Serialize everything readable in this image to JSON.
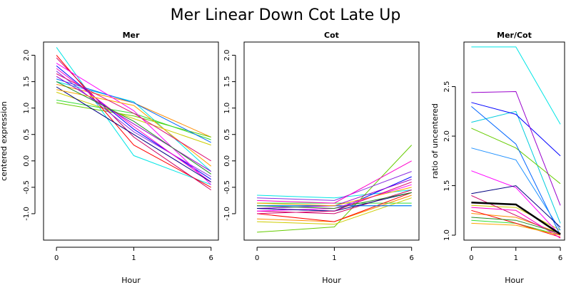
{
  "figure_title": "Mer Linear Down Cot Late Up",
  "chart_data": [
    {
      "type": "line",
      "title": "Mer",
      "xlabel": "Hour",
      "ylabel": "centered expression",
      "x": [
        0,
        1,
        6
      ],
      "ylim": [
        -1.5,
        2.25
      ],
      "yticks": [
        -1.0,
        -0.5,
        0.0,
        0.5,
        1.0,
        1.5,
        2.0
      ],
      "ytick_labels": [
        "-1.0",
        "-0.5",
        "0.0",
        "0.5",
        "1.0",
        "1.5",
        "2.0"
      ],
      "xtick_labels": [
        "0",
        "1",
        "6"
      ],
      "grid": false,
      "series": [
        {
          "color": "#00e5e5",
          "values": [
            2.15,
            0.1,
            -0.45
          ]
        },
        {
          "color": "#00e5e5",
          "values": [
            1.5,
            1.12,
            -0.2
          ]
        },
        {
          "color": "#ff8c00",
          "values": [
            1.45,
            1.1,
            0.45
          ]
        },
        {
          "color": "#66cc00",
          "values": [
            1.1,
            0.85,
            0.45
          ]
        },
        {
          "color": "#33dd33",
          "values": [
            1.15,
            0.9,
            0.4
          ]
        },
        {
          "color": "#cccc00",
          "values": [
            1.3,
            0.8,
            0.3
          ]
        },
        {
          "color": "#ff0000",
          "values": [
            2.0,
            0.3,
            -0.5
          ]
        },
        {
          "color": "#cc0066",
          "values": [
            1.95,
            0.45,
            -0.55
          ]
        },
        {
          "color": "#0000ff",
          "values": [
            1.8,
            0.6,
            -0.35
          ]
        },
        {
          "color": "#0066ff",
          "values": [
            1.55,
            1.1,
            0.35
          ]
        },
        {
          "color": "#8a2be2",
          "values": [
            1.7,
            0.55,
            -0.3
          ]
        },
        {
          "color": "#9900cc",
          "values": [
            1.6,
            0.7,
            -0.2
          ]
        },
        {
          "color": "#ff00ff",
          "values": [
            1.85,
            0.95,
            -0.45
          ]
        },
        {
          "color": "#ff00cc",
          "values": [
            1.75,
            0.65,
            -0.4
          ]
        },
        {
          "color": "#000080",
          "values": [
            1.4,
            0.5,
            -0.4
          ]
        },
        {
          "color": "#ffa500",
          "values": [
            1.35,
            1.05,
            -0.1
          ]
        },
        {
          "color": "#228b22",
          "values": [
            1.5,
            0.75,
            -0.25
          ]
        },
        {
          "color": "#dd1177",
          "values": [
            1.65,
            0.9,
            0.0
          ]
        }
      ]
    },
    {
      "type": "line",
      "title": "Cot",
      "xlabel": "Hour",
      "ylabel": "",
      "x": [
        0,
        1,
        6
      ],
      "ylim": [
        -1.5,
        2.25
      ],
      "yticks": [
        -1.0,
        -0.5,
        0.0,
        0.5,
        1.0,
        1.5,
        2.0
      ],
      "ytick_labels": [
        "-1.0",
        "-0.5",
        "0.0",
        "0.5",
        "1.0",
        "1.5",
        "2.0"
      ],
      "xtick_labels": [
        "0",
        "1",
        "6"
      ],
      "grid": false,
      "series": [
        {
          "color": "#00e5e5",
          "values": [
            -0.65,
            -0.7,
            -0.55
          ]
        },
        {
          "color": "#00cccc",
          "values": [
            -0.85,
            -0.85,
            -0.85
          ]
        },
        {
          "color": "#ff8c00",
          "values": [
            -1.1,
            -1.15,
            -0.65
          ]
        },
        {
          "color": "#66cc00",
          "values": [
            -1.35,
            -1.25,
            0.3
          ]
        },
        {
          "color": "#33dd33",
          "values": [
            -0.8,
            -0.8,
            -0.8
          ]
        },
        {
          "color": "#cccc00",
          "values": [
            -1.15,
            -1.2,
            -0.7
          ]
        },
        {
          "color": "#ff0000",
          "values": [
            -1.0,
            -1.15,
            -0.6
          ]
        },
        {
          "color": "#cc0066",
          "values": [
            -0.95,
            -1.0,
            -0.55
          ]
        },
        {
          "color": "#0000ff",
          "values": [
            -0.9,
            -0.95,
            -0.3
          ]
        },
        {
          "color": "#0066ff",
          "values": [
            -0.85,
            -0.85,
            -0.85
          ]
        },
        {
          "color": "#8a2be2",
          "values": [
            -0.7,
            -0.75,
            -0.2
          ]
        },
        {
          "color": "#9900cc",
          "values": [
            -0.9,
            -0.85,
            -0.35
          ]
        },
        {
          "color": "#ff00ff",
          "values": [
            -0.95,
            -0.9,
            -0.45
          ]
        },
        {
          "color": "#ff00cc",
          "values": [
            -0.75,
            -0.8,
            0.0
          ]
        },
        {
          "color": "#000080",
          "values": [
            -0.9,
            -0.95,
            -0.6
          ]
        },
        {
          "color": "#ffa500",
          "values": [
            -0.8,
            -0.85,
            -0.5
          ]
        },
        {
          "color": "#228b22",
          "values": [
            -0.85,
            -0.9,
            -0.6
          ]
        },
        {
          "color": "#dd1177",
          "values": [
            -1.0,
            -0.95,
            -0.4
          ]
        }
      ]
    },
    {
      "type": "line",
      "title": "Mer/Cot",
      "xlabel": "Hour",
      "ylabel": "ratio of uncentered",
      "x": [
        0,
        1,
        6
      ],
      "ylim": [
        0.95,
        2.95
      ],
      "yticks": [
        1.0,
        1.5,
        2.0,
        2.5
      ],
      "ytick_labels": [
        "1.0",
        "1.5",
        "2.0",
        "2.5"
      ],
      "xtick_labels": [
        "0",
        "1",
        "6"
      ],
      "grid": false,
      "series": [
        {
          "color": "#00e5e5",
          "values": [
            2.9,
            2.9,
            2.12
          ]
        },
        {
          "color": "#00ccdd",
          "values": [
            2.14,
            2.25,
            1.12
          ]
        },
        {
          "color": "#ff8c00",
          "values": [
            1.22,
            1.18,
            1.02
          ]
        },
        {
          "color": "#66cc00",
          "values": [
            2.08,
            1.88,
            1.52
          ]
        },
        {
          "color": "#33dd33",
          "values": [
            1.15,
            1.12,
            1.0
          ]
        },
        {
          "color": "#cccc00",
          "values": [
            1.3,
            1.28,
            1.05
          ]
        },
        {
          "color": "#ff0000",
          "values": [
            1.25,
            1.12,
            0.98
          ]
        },
        {
          "color": "#cc0066",
          "values": [
            1.4,
            1.2,
            1.0
          ]
        },
        {
          "color": "#0000ff",
          "values": [
            2.34,
            2.22,
            1.8
          ]
        },
        {
          "color": "#0066ff",
          "values": [
            2.3,
            1.92,
            1.0
          ]
        },
        {
          "color": "#1e90ff",
          "values": [
            1.88,
            1.76,
            1.05
          ]
        },
        {
          "color": "#9900cc",
          "values": [
            2.44,
            2.45,
            1.3
          ]
        },
        {
          "color": "#ff00ff",
          "values": [
            1.65,
            1.48,
            1.0
          ]
        },
        {
          "color": "#ff00cc",
          "values": [
            1.28,
            1.25,
            0.97
          ]
        },
        {
          "color": "#000080",
          "values": [
            1.42,
            1.5,
            1.08
          ]
        },
        {
          "color": "#ffa500",
          "values": [
            1.12,
            1.1,
            1.0
          ]
        },
        {
          "color": "#228b22",
          "values": [
            1.18,
            1.15,
            1.02
          ]
        },
        {
          "color": "#000000",
          "values": [
            1.33,
            1.31,
            1.01
          ],
          "width": 2.5
        }
      ]
    }
  ]
}
